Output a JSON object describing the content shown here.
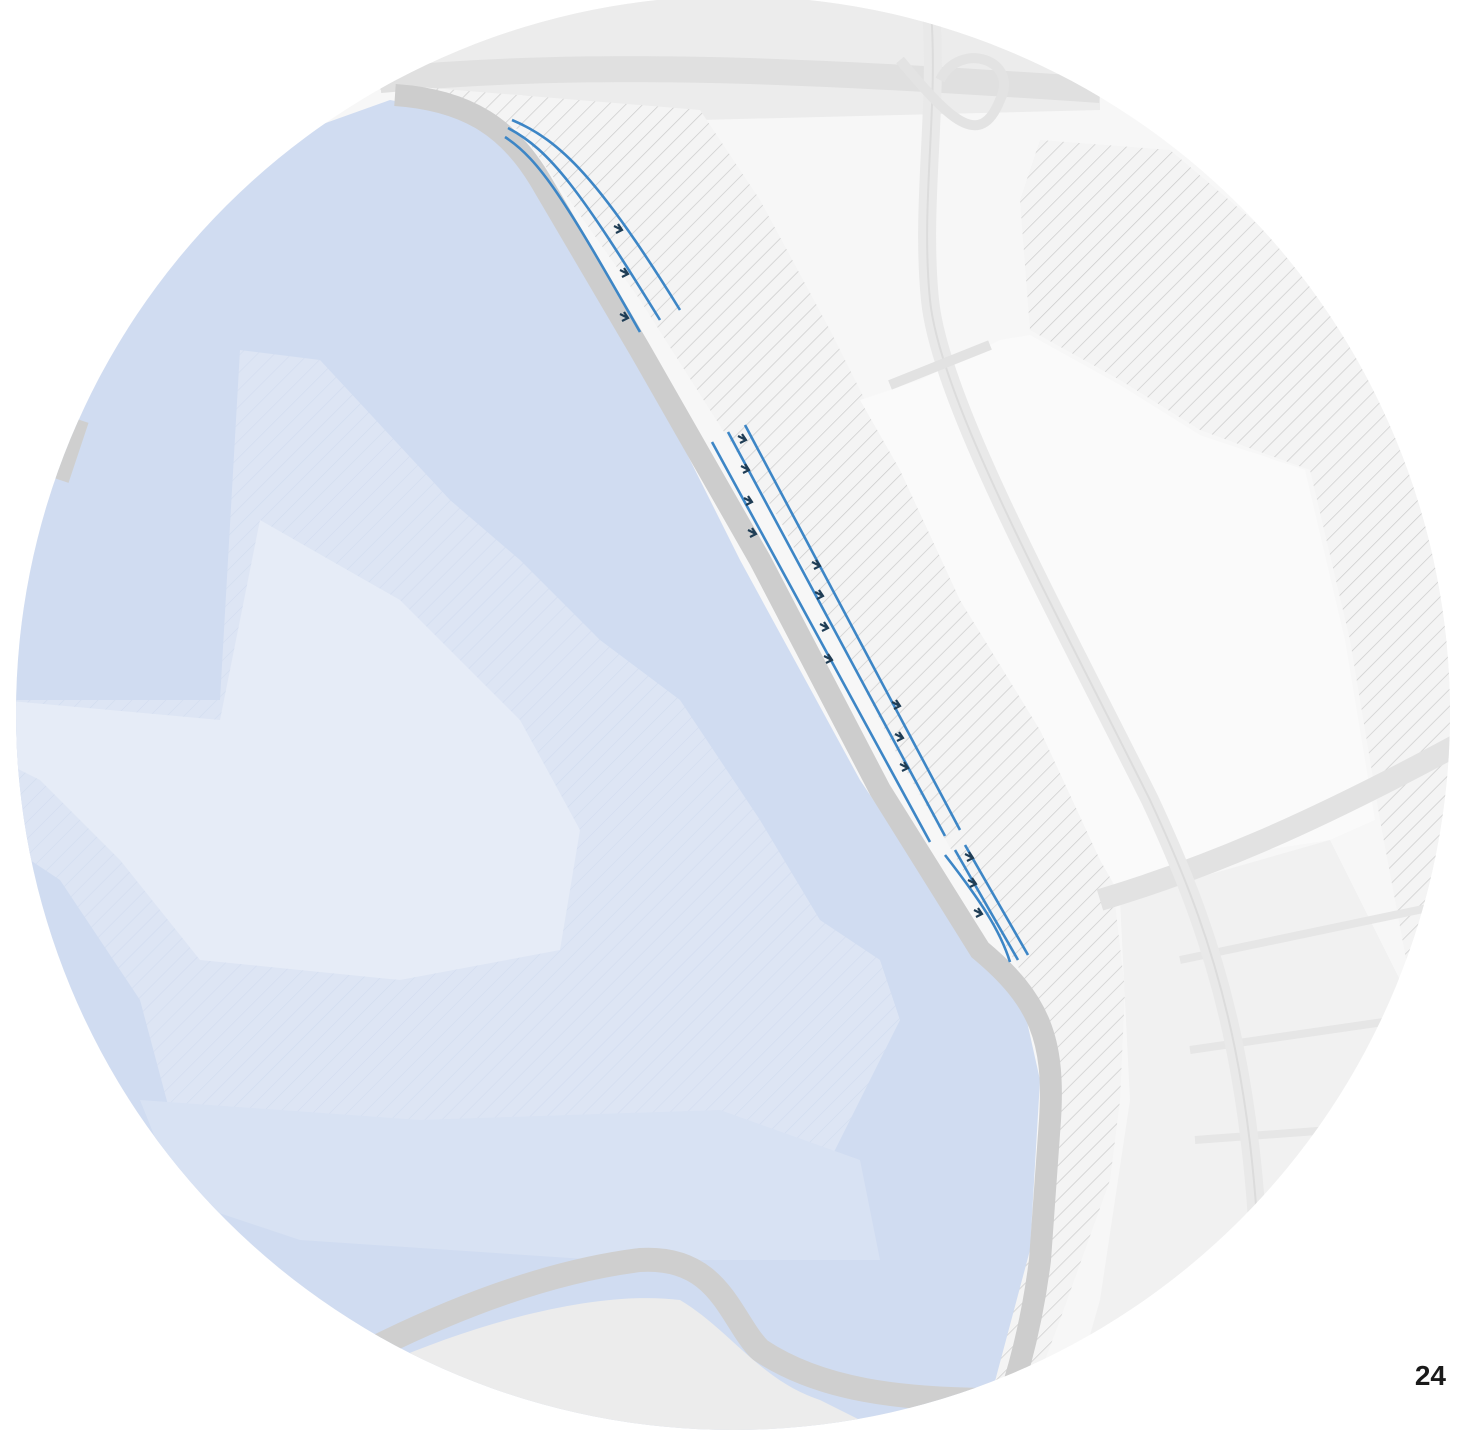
{
  "page_number": "24",
  "colors": {
    "water": "#d0dcf1",
    "water_light": "#e6ecf7",
    "water_mid": "#dae3f4",
    "land": "#f6f6f6",
    "land_alt": "#efefef",
    "embankment": "#cdcdcd",
    "road": "#e4e4e4",
    "hatch": "#c9c9c9",
    "flow_line": "#3d86c6",
    "flow_arrow": "#1f3d55",
    "text": "#1a1a1a"
  },
  "icons": {
    "flow_arrow": "arrow-right-icon"
  }
}
